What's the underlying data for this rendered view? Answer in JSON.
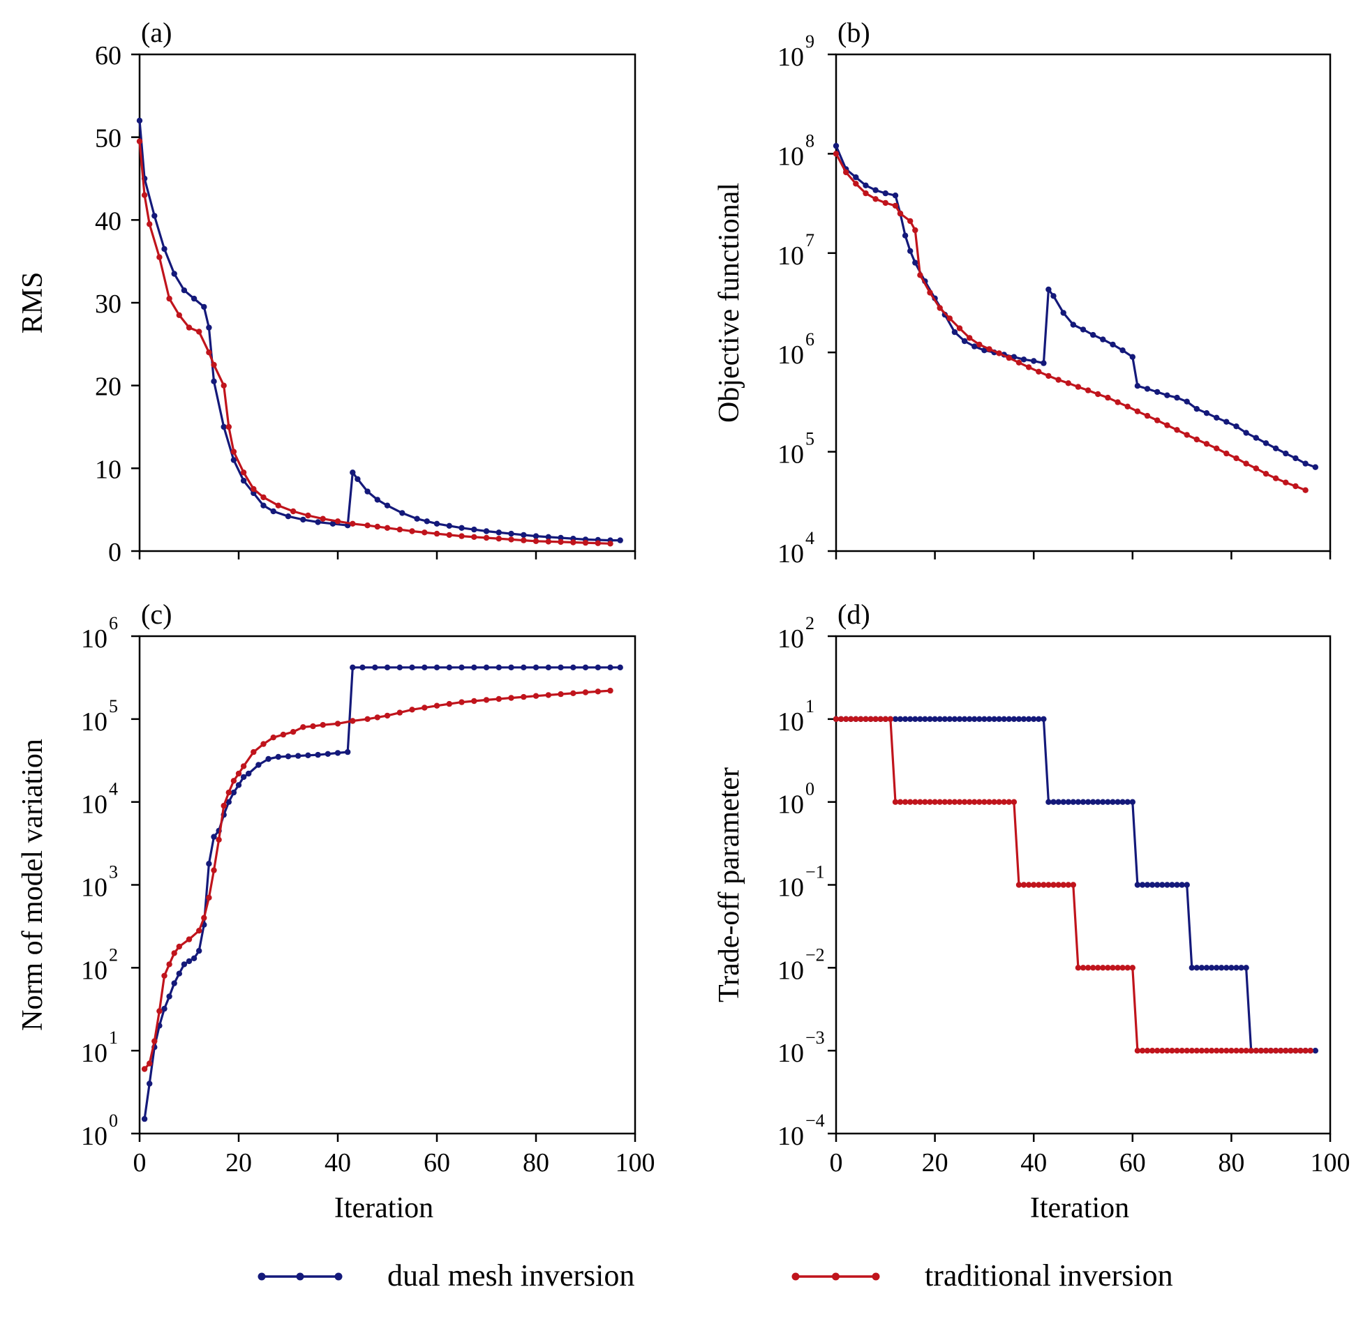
{
  "colors": {
    "dual": "#14197a",
    "traditional": "#c0141c",
    "axis": "#000000"
  },
  "legend": {
    "dual": "dual mesh inversion",
    "traditional": "traditional inversion"
  },
  "chart_data": [
    {
      "id": "a",
      "panel_label": "(a)",
      "type": "line",
      "yscale": "linear",
      "ylabel": "RMS",
      "xlabel": "",
      "xlim": [
        0,
        100
      ],
      "ylim": [
        0,
        60
      ],
      "xticks": [
        0,
        20,
        40,
        60,
        80,
        100
      ],
      "yticks": [
        0,
        10,
        20,
        30,
        40,
        50,
        60
      ],
      "xtick_labels_shown": false,
      "series": [
        {
          "name": "dual mesh inversion",
          "x": [
            0,
            1,
            3,
            5,
            7,
            9,
            11,
            13,
            14,
            15,
            17,
            19,
            21,
            23,
            25,
            27,
            30,
            33,
            36,
            39,
            42,
            43,
            44,
            46,
            48,
            50,
            53,
            56,
            60,
            65,
            70,
            75,
            80,
            85,
            90,
            95,
            97
          ],
          "y": [
            52,
            45,
            40.5,
            36.5,
            33.5,
            31.5,
            30.5,
            29.5,
            27,
            20.5,
            15,
            11,
            8.5,
            7,
            5.5,
            4.8,
            4.2,
            3.8,
            3.5,
            3.3,
            3.1,
            9.5,
            8.7,
            7.2,
            6.2,
            5.5,
            4.6,
            3.9,
            3.3,
            2.8,
            2.4,
            2.1,
            1.8,
            1.6,
            1.4,
            1.3,
            1.3
          ]
        },
        {
          "name": "traditional inversion",
          "x": [
            0,
            1,
            2,
            4,
            6,
            8,
            10,
            12,
            14,
            15,
            17,
            18,
            19,
            21,
            23,
            25,
            28,
            31,
            34,
            37,
            40,
            43,
            46,
            50,
            55,
            60,
            65,
            70,
            75,
            80,
            85,
            90,
            95
          ],
          "y": [
            49.5,
            43,
            39.5,
            35.5,
            30.5,
            28.5,
            27,
            26.5,
            24,
            22.5,
            20,
            15,
            12,
            9.5,
            7.5,
            6.5,
            5.5,
            4.8,
            4.3,
            3.9,
            3.6,
            3.3,
            3.1,
            2.8,
            2.4,
            2.1,
            1.8,
            1.6,
            1.4,
            1.2,
            1.1,
            1.0,
            0.9
          ]
        }
      ]
    },
    {
      "id": "b",
      "panel_label": "(b)",
      "type": "line",
      "yscale": "log",
      "ylabel": "Objective functional",
      "xlabel": "",
      "xlim": [
        0,
        100
      ],
      "ylim_exponents": [
        4,
        9
      ],
      "xticks": [
        0,
        20,
        40,
        60,
        80,
        100
      ],
      "ytick_base": "10",
      "ytick_exponents": [
        4,
        5,
        6,
        7,
        8,
        9
      ],
      "xtick_labels_shown": false,
      "series": [
        {
          "name": "dual mesh inversion",
          "x": [
            0,
            2,
            4,
            6,
            8,
            10,
            12,
            13,
            14,
            15,
            16,
            18,
            20,
            22,
            24,
            26,
            28,
            30,
            32,
            34,
            36,
            38,
            40,
            42,
            43,
            44,
            46,
            48,
            50,
            52,
            54,
            56,
            58,
            60,
            61,
            63,
            65,
            67,
            69,
            71,
            73,
            75,
            77,
            79,
            81,
            83,
            85,
            87,
            89,
            91,
            93,
            95,
            97
          ],
          "y": [
            120000000.0,
            70000000.0,
            58000000.0,
            48000000.0,
            43000000.0,
            40000000.0,
            38000000.0,
            25000000.0,
            15000000.0,
            10500000.0,
            8000000.0,
            5200000.0,
            3500000.0,
            2400000.0,
            1600000.0,
            1300000.0,
            1150000.0,
            1050000.0,
            1000000.0,
            950000.0,
            900000.0,
            850000.0,
            820000.0,
            780000.0,
            4300000.0,
            3700000.0,
            2500000.0,
            1900000.0,
            1700000.0,
            1500000.0,
            1350000.0,
            1200000.0,
            1050000.0,
            900000.0,
            460000.0,
            430000.0,
            400000.0,
            370000.0,
            350000.0,
            320000.0,
            270000.0,
            245000.0,
            220000.0,
            200000.0,
            180000.0,
            155000.0,
            138000.0,
            122000.0,
            108000.0,
            96000.0,
            86000.0,
            76000.0,
            70000.0
          ]
        },
        {
          "name": "traditional inversion",
          "x": [
            0,
            2,
            4,
            6,
            8,
            10,
            12,
            13,
            15,
            16,
            17,
            19,
            21,
            23,
            25,
            27,
            29,
            31,
            33,
            35,
            37,
            39,
            41,
            43,
            45,
            47,
            49,
            51,
            53,
            55,
            57,
            59,
            61,
            63,
            65,
            67,
            69,
            71,
            73,
            75,
            77,
            79,
            81,
            83,
            85,
            87,
            89,
            91,
            93,
            95
          ],
          "y": [
            100000000.0,
            65000000.0,
            50000000.0,
            40000000.0,
            35000000.0,
            32000000.0,
            30000000.0,
            25000000.0,
            21000000.0,
            17000000.0,
            6000000.0,
            4000000.0,
            2800000.0,
            2200000.0,
            1750000.0,
            1400000.0,
            1200000.0,
            1080000.0,
            980000.0,
            880000.0,
            790000.0,
            710000.0,
            640000.0,
            580000.0,
            530000.0,
            490000.0,
            450000.0,
            415000.0,
            380000.0,
            350000.0,
            315000.0,
            285000.0,
            255000.0,
            230000.0,
            207000.0,
            185000.0,
            166000.0,
            148000.0,
            133000.0,
            120000.0,
            108000.0,
            96000.0,
            86000.0,
            76000.0,
            68000.0,
            60000.0,
            54000.0,
            49000.0,
            45000.0,
            41000.0
          ]
        }
      ]
    },
    {
      "id": "c",
      "panel_label": "(c)",
      "type": "line",
      "yscale": "log",
      "ylabel": "Norm of model variation",
      "xlabel": "Iteration",
      "xlim": [
        0,
        100
      ],
      "ylim_exponents": [
        0,
        6
      ],
      "xticks": [
        0,
        20,
        40,
        60,
        80,
        100
      ],
      "ytick_base": "10",
      "ytick_exponents": [
        0,
        1,
        2,
        3,
        4,
        5,
        6
      ],
      "xtick_labels_shown": true,
      "series": [
        {
          "name": "dual mesh inversion",
          "x": [
            1,
            2,
            3,
            4,
            5,
            6,
            7,
            8,
            9,
            10,
            11,
            12,
            13,
            14,
            15,
            16,
            17,
            18,
            19,
            20,
            21,
            22,
            24,
            26,
            28,
            30,
            32,
            34,
            36,
            38,
            40,
            42,
            43,
            45,
            50,
            55,
            60,
            65,
            70,
            75,
            80,
            85,
            90,
            95,
            97
          ],
          "y": [
            1.5,
            4,
            11,
            20,
            32,
            45,
            65,
            85,
            110,
            120,
            130,
            160,
            330,
            1800,
            3800,
            4500,
            7000,
            10000,
            13000,
            16000,
            20000,
            22000,
            28000,
            33000,
            35000,
            35500,
            36000,
            36500,
            37000,
            38000,
            39000,
            40000,
            420000.0,
            420000.0,
            420000.0,
            420000.0,
            420000.0,
            420000.0,
            420000.0,
            420000.0,
            420000.0,
            420000.0,
            420000.0,
            420000.0,
            420000.0
          ]
        },
        {
          "name": "traditional inversion",
          "x": [
            1,
            2,
            3,
            4,
            5,
            6,
            7,
            8,
            10,
            12,
            13,
            14,
            15,
            16,
            17,
            18,
            19,
            20,
            21,
            23,
            25,
            27,
            29,
            31,
            33,
            35,
            37,
            40,
            43,
            46,
            50,
            55,
            60,
            65,
            70,
            75,
            80,
            85,
            90,
            95
          ],
          "y": [
            6,
            7,
            13,
            30,
            80,
            110,
            150,
            180,
            220,
            280,
            400,
            700,
            1500,
            3500,
            9000,
            13000,
            18000,
            22000,
            27000,
            40000,
            50000,
            60000,
            65000,
            70000,
            80000,
            82000,
            85000,
            88000,
            95000,
            100000.0,
            110000.0,
            130000.0,
            145000.0,
            160000.0,
            170000.0,
            180000.0,
            190000.0,
            200000.0,
            210000.0,
            220000.0
          ]
        }
      ]
    },
    {
      "id": "d",
      "panel_label": "(d)",
      "type": "line",
      "yscale": "log",
      "ylabel": "Trade-off parameter",
      "xlabel": "Iteration",
      "xlim": [
        0,
        100
      ],
      "ylim_exponents": [
        -4,
        2
      ],
      "xticks": [
        0,
        20,
        40,
        60,
        80,
        100
      ],
      "ytick_base": "10",
      "ytick_exponents": [
        -4,
        -3,
        -2,
        -1,
        0,
        1,
        2
      ],
      "xtick_labels_shown": true,
      "step_series": true,
      "series": [
        {
          "name": "dual mesh inversion",
          "steps": [
            [
              0,
              42,
              1
            ],
            [
              43,
              60,
              0
            ],
            [
              61,
              71,
              -1
            ],
            [
              72,
              83,
              -2
            ],
            [
              84,
              97,
              -3
            ]
          ]
        },
        {
          "name": "traditional inversion",
          "steps": [
            [
              0,
              11,
              1
            ],
            [
              12,
              36,
              0
            ],
            [
              37,
              48,
              -1
            ],
            [
              49,
              60,
              -2
            ],
            [
              61,
              96,
              -3
            ]
          ]
        }
      ]
    }
  ]
}
